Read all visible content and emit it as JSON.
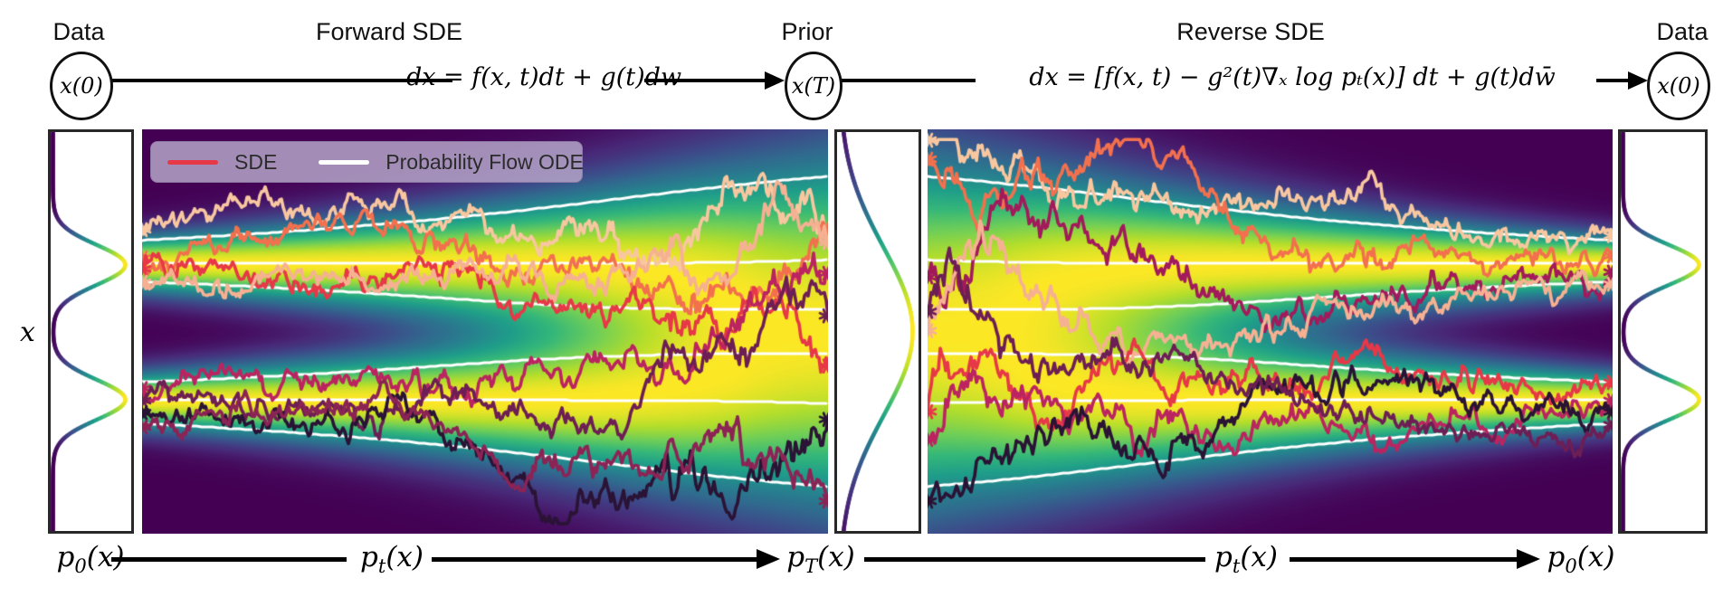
{
  "figure": {
    "header": {
      "data_label_left": "Data",
      "forward_sde_title": "Forward SDE",
      "prior_label": "Prior",
      "reverse_sde_title": "Reverse SDE",
      "data_label_right": "Data",
      "node_x0_left": "x(0)",
      "node_xT": "x(T)",
      "node_x0_right": "x(0)",
      "forward_equation": "dx = f(x, t)dt + g(t)dw",
      "reverse_equation": "dx = [f(x, t) − g²(t)∇ₓ log pₜ(x)] dt + g(t)dw̄"
    },
    "y_axis_label": "x",
    "legend": {
      "items": [
        {
          "label": "SDE",
          "color": "#e73847"
        },
        {
          "label": "Probability Flow ODE",
          "color": "#ffffff"
        }
      ]
    },
    "footer_labels": [
      {
        "base": "p",
        "sub": "0",
        "rest": "(x)"
      },
      {
        "base": "p",
        "sub": "t",
        "rest": "(x)"
      },
      {
        "base": "p",
        "sub": "T",
        "rest": "(x)"
      },
      {
        "base": "p",
        "sub": "t",
        "rest": "(x)"
      },
      {
        "base": "p",
        "sub": "0",
        "rest": "(x)"
      }
    ],
    "viridis_stops": [
      "#440154",
      "#482878",
      "#3e4989",
      "#31688e",
      "#26828e",
      "#1f9e89",
      "#35b779",
      "#6ece58",
      "#b5de2b",
      "#fde725"
    ]
  },
  "chart_data": [
    {
      "id": "marginal-left",
      "type": "line",
      "role": "marginal-density",
      "label": "p_0(x)",
      "orientation": "vertical",
      "colormap": "viridis",
      "components": [
        {
          "mean": 0.333,
          "sigma": 0.05,
          "weight": 0.5
        },
        {
          "mean": 0.671,
          "sigma": 0.05,
          "weight": 0.5
        }
      ]
    },
    {
      "id": "heatmap-forward",
      "type": "heatmap",
      "title": "Forward SDE",
      "direction": "forward",
      "colormap": "viridis",
      "x_range": [
        0,
        1
      ],
      "modes": [
        0.333,
        0.671
      ],
      "sigma_start": 0.045,
      "sigma_end": 0.2,
      "gamma": 0.82,
      "ode_line_color": "#ffffff",
      "ode_quantiles": [
        0.05,
        0.25,
        0.42,
        0.58,
        0.75,
        0.95
      ],
      "marker": "star8",
      "sde_trajectories": [
        {
          "color": "#f8c7a0",
          "start_mode": 0.333,
          "offset": -0.085,
          "seed": 101
        },
        {
          "color": "#f3704e",
          "start_mode": 0.333,
          "offset": -0.015,
          "seed": 102
        },
        {
          "color": "#e73847",
          "start_mode": 0.333,
          "offset": 0.012,
          "seed": 103
        },
        {
          "color": "#f6b193",
          "start_mode": 0.333,
          "offset": 0.045,
          "seed": 104
        },
        {
          "color": "#bb2460",
          "start_mode": 0.671,
          "offset": -0.03,
          "seed": 105
        },
        {
          "color": "#6d1e54",
          "start_mode": 0.671,
          "offset": 0.0,
          "seed": 106
        },
        {
          "color": "#2a1335",
          "start_mode": 0.671,
          "offset": 0.03,
          "seed": 107
        },
        {
          "color": "#8c2355",
          "start_mode": 0.671,
          "offset": 0.065,
          "seed": 108
        }
      ]
    },
    {
      "id": "marginal-prior",
      "type": "line",
      "role": "marginal-density",
      "label": "p_T(x)",
      "orientation": "vertical",
      "colormap": "viridis",
      "components": [
        {
          "mean": 0.5,
          "sigma": 0.21,
          "weight": 1.0
        }
      ]
    },
    {
      "id": "heatmap-reverse",
      "type": "heatmap",
      "title": "Reverse SDE",
      "direction": "reverse",
      "colormap": "viridis",
      "x_range": [
        0,
        1
      ],
      "modes": [
        0.333,
        0.671
      ],
      "sigma_start": 0.045,
      "sigma_end": 0.2,
      "gamma": 0.82,
      "ode_line_color": "#ffffff",
      "ode_quantiles": [
        0.05,
        0.25,
        0.42,
        0.58,
        0.75,
        0.95
      ],
      "marker": "star8",
      "sde_trajectories": [
        {
          "color": "#f8c7a0",
          "start_mode": 0.333,
          "offset": -0.07,
          "seed": 201
        },
        {
          "color": "#f3704e",
          "start_mode": 0.333,
          "offset": -0.02,
          "seed": 202
        },
        {
          "color": "#a21a5b",
          "start_mode": 0.333,
          "offset": 0.02,
          "seed": 203
        },
        {
          "color": "#f6b193",
          "start_mode": 0.333,
          "offset": 0.05,
          "seed": 204
        },
        {
          "color": "#e73847",
          "start_mode": 0.671,
          "offset": -0.045,
          "seed": 205
        },
        {
          "color": "#bb2460",
          "start_mode": 0.671,
          "offset": 0.0,
          "seed": 206
        },
        {
          "color": "#2a1335",
          "start_mode": 0.671,
          "offset": 0.028,
          "seed": 207
        },
        {
          "color": "#6d1e54",
          "start_mode": 0.671,
          "offset": 0.06,
          "seed": 208
        }
      ]
    },
    {
      "id": "marginal-right",
      "type": "line",
      "role": "marginal-density",
      "label": "p_0(x)",
      "orientation": "vertical",
      "colormap": "viridis",
      "components": [
        {
          "mean": 0.333,
          "sigma": 0.05,
          "weight": 0.5
        },
        {
          "mean": 0.671,
          "sigma": 0.05,
          "weight": 0.5
        }
      ]
    }
  ]
}
